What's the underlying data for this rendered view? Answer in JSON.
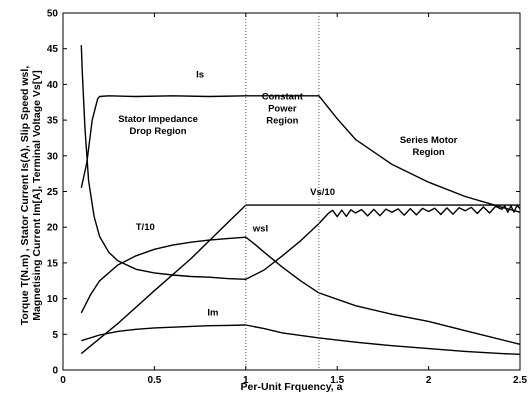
{
  "chart_data": {
    "type": "line",
    "xlabel": "Per-Unit Frquency, a",
    "ylabel_lines": [
      "Torque T(N.m) , Stator Current Is(A), Slip Speed wsl,",
      "Magnetising Current Im[A], Terminal Voltage Vs[V]"
    ],
    "xlim": [
      0,
      2.5
    ],
    "ylim": [
      0,
      50
    ],
    "xticks": [
      "0",
      "0.5",
      "1",
      "1.5",
      "2",
      "2.5"
    ],
    "yticks": [
      "0",
      "5",
      "10",
      "15",
      "20",
      "25",
      "30",
      "35",
      "40",
      "45",
      "50"
    ],
    "grid": false,
    "vlines": [
      1.0,
      1.4
    ],
    "series": [
      {
        "name": "Is",
        "x": [
          0.1,
          0.13,
          0.16,
          0.19,
          0.2,
          0.25,
          0.4,
          0.6,
          0.8,
          1.0,
          1.2,
          1.4,
          1.5,
          1.6,
          1.8,
          2.0,
          2.2,
          2.4,
          2.5
        ],
        "y": [
          25.5,
          29,
          35,
          38,
          38.3,
          38.4,
          38.3,
          38.4,
          38.3,
          38.4,
          38.4,
          38.4,
          35.2,
          32.3,
          28.8,
          26.3,
          24.3,
          22.8,
          22.1
        ]
      },
      {
        "name": "Vs/10",
        "x": [
          0.1,
          0.3,
          0.5,
          0.7,
          0.9,
          1.0,
          1.2,
          1.5,
          2.0,
          2.5
        ],
        "y": [
          2.3,
          6.5,
          11.1,
          15.6,
          20.6,
          23.1,
          23.1,
          23.1,
          23.1,
          23.1
        ]
      },
      {
        "name": "T/10",
        "x": [
          0.1,
          0.15,
          0.2,
          0.3,
          0.4,
          0.5,
          0.6,
          0.7,
          0.8,
          0.9,
          1.0,
          1.05,
          1.1,
          1.2,
          1.3,
          1.4,
          1.6,
          1.8,
          2.0,
          2.2,
          2.5
        ],
        "y": [
          8.0,
          10.5,
          12.5,
          14.7,
          16.0,
          16.9,
          17.5,
          17.9,
          18.2,
          18.4,
          18.6,
          17.6,
          16.5,
          14.4,
          12.5,
          10.8,
          9.0,
          7.8,
          6.8,
          5.5,
          3.6
        ]
      },
      {
        "name": "wsl",
        "x": [
          0.1,
          0.105,
          0.12,
          0.14,
          0.17,
          0.2,
          0.25,
          0.3,
          0.4,
          0.5,
          0.6,
          0.7,
          0.8,
          0.9,
          1.0,
          1.1,
          1.2,
          1.3,
          1.4,
          1.45,
          1.6,
          1.8,
          2.0,
          2.2,
          2.4,
          2.5
        ],
        "y": [
          45.5,
          42,
          34,
          26.5,
          21.5,
          18.7,
          16.5,
          15.3,
          14.1,
          13.6,
          13.3,
          13.1,
          13.0,
          12.8,
          12.7,
          14.0,
          16.0,
          18.1,
          20.5,
          21.9,
          22.0,
          22.1,
          22.2,
          22.3,
          22.5,
          22.6
        ]
      },
      {
        "name": "Im",
        "x": [
          0.1,
          0.2,
          0.3,
          0.4,
          0.5,
          0.6,
          0.7,
          0.8,
          0.9,
          1.0,
          1.1,
          1.2,
          1.4,
          1.6,
          1.8,
          2.0,
          2.2,
          2.4,
          2.5
        ],
        "y": [
          4.1,
          4.9,
          5.4,
          5.7,
          5.9,
          6.0,
          6.1,
          6.2,
          6.25,
          6.3,
          5.8,
          5.2,
          4.5,
          3.9,
          3.4,
          3.0,
          2.6,
          2.3,
          2.2
        ]
      }
    ],
    "labels": [
      {
        "text": "Is",
        "x": 0.75,
        "y": 41
      },
      {
        "text": "Vs/10",
        "x": 1.42,
        "y": 24.5
      },
      {
        "text": "T/10",
        "x": 0.45,
        "y": 19.6
      },
      {
        "text": "wsl",
        "x": 1.08,
        "y": 19.4
      },
      {
        "text": "Im",
        "x": 0.82,
        "y": 7.6
      }
    ],
    "annotations": [
      {
        "lines": [
          "Stator Impedance",
          "Drop Region"
        ],
        "x": 0.52,
        "y": 34.7
      },
      {
        "lines": [
          "Constant",
          "Power",
          "Region"
        ],
        "x": 1.2,
        "y": 37.9
      },
      {
        "lines": [
          "Series Motor",
          "Region"
        ],
        "x": 2.0,
        "y": 31.8
      }
    ]
  }
}
